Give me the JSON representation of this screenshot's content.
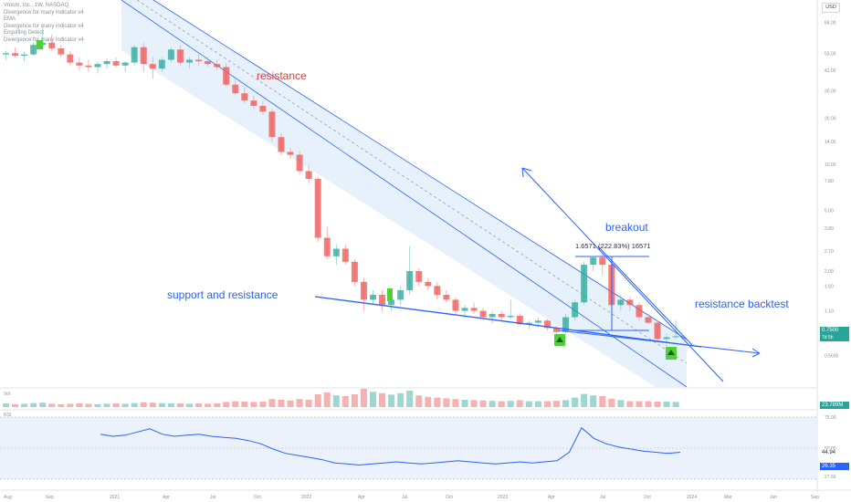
{
  "header": {
    "symbol_line": "Vroom, Inc., 1W, NASDAQ",
    "indicators": [
      "Divergence for many indicator v4",
      "EMA",
      "Divergence for many indicator v4",
      "Engulfing Detect",
      "Divergence for many indicator v4"
    ]
  },
  "currency_button": "USD",
  "annotations": {
    "resistance": "resistance",
    "support_and_resistance": "support and resistance",
    "breakout": "breakout",
    "resistance_backtest": "resistance backtest",
    "measure": "1.6571 (222.83%) 16571"
  },
  "price_boxes": {
    "last": "0.7500",
    "countdown": "7d 5h",
    "volume": "23.789M",
    "rsi_a": "44.94",
    "rsi_b": "26.35"
  },
  "panels": {
    "volume_label": "Vol",
    "rsi_label": "RSI"
  },
  "colors": {
    "up": "#26a69a",
    "down": "#ef5350",
    "up_light": "#8ecfc6",
    "down_light": "#f3a3a1",
    "line_blue": "#2962ff",
    "channel_fill": "#e3eefb",
    "signal_green": "#4cd137",
    "rsi_line": "#2962ff",
    "rsi_band": "#eaf1fb"
  },
  "chart_data": {
    "type": "candlestick",
    "timeframe": "1W",
    "price_axis_scale": "log",
    "price_axis_ticks": [
      "100.00",
      "84.00",
      "53.00",
      "41.00",
      "30.00",
      "20.00",
      "14.00",
      "10.00",
      "7.80",
      "5.00",
      "3.80",
      "2.70",
      "2.00",
      "1.60",
      "1.10",
      "0.8000",
      "0.5600",
      "0.3800"
    ],
    "time_axis_ticks": [
      "Aug",
      "Sep",
      "2021",
      "Apr",
      "Jul",
      "Oct",
      "2022",
      "Apr",
      "Jul",
      "Oct",
      "2023",
      "Apr",
      "Jul",
      "Oct",
      "2024",
      "Mar",
      "Jun",
      "Sep"
    ],
    "candles": [
      [
        52,
        55,
        48,
        53
      ],
      [
        53,
        58,
        50,
        51
      ],
      [
        51,
        54,
        47,
        52
      ],
      [
        52,
        62,
        51,
        60
      ],
      [
        60,
        80,
        58,
        62
      ],
      [
        62,
        70,
        55,
        57
      ],
      [
        57,
        60,
        50,
        52
      ],
      [
        52,
        55,
        44,
        46
      ],
      [
        46,
        50,
        41,
        44
      ],
      [
        44,
        48,
        40,
        43
      ],
      [
        43,
        47,
        39,
        45
      ],
      [
        45,
        49,
        42,
        47
      ],
      [
        47,
        50,
        43,
        44
      ],
      [
        44,
        47,
        40,
        46
      ],
      [
        46,
        60,
        44,
        58
      ],
      [
        58,
        62,
        40,
        45
      ],
      [
        45,
        50,
        36,
        42
      ],
      [
        42,
        50,
        40,
        48
      ],
      [
        48,
        58,
        46,
        56
      ],
      [
        56,
        60,
        44,
        46
      ],
      [
        46,
        50,
        42,
        48
      ],
      [
        48,
        52,
        44,
        47
      ],
      [
        47,
        50,
        43,
        45
      ],
      [
        45,
        48,
        41,
        43
      ],
      [
        43,
        46,
        32,
        33
      ],
      [
        33,
        36,
        28,
        29
      ],
      [
        29,
        32,
        25,
        26
      ],
      [
        26,
        28,
        23,
        24
      ],
      [
        24,
        26,
        21,
        22
      ],
      [
        22,
        23,
        14,
        15
      ],
      [
        15,
        16,
        11.5,
        12
      ],
      [
        12,
        12.8,
        10.8,
        11.5
      ],
      [
        11.5,
        12.2,
        8.6,
        9
      ],
      [
        9,
        9.8,
        7.5,
        8
      ],
      [
        8,
        8.2,
        3.1,
        3.3
      ],
      [
        3.3,
        3.9,
        2.4,
        2.5
      ],
      [
        2.5,
        3,
        2.2,
        2.8
      ],
      [
        2.8,
        3,
        2.2,
        2.3
      ],
      [
        2.3,
        2.4,
        1.6,
        1.7
      ],
      [
        1.7,
        1.8,
        1.1,
        1.3
      ],
      [
        1.3,
        1.5,
        1.2,
        1.4
      ],
      [
        1.4,
        1.5,
        1.1,
        1.2
      ],
      [
        1.2,
        1.4,
        1.1,
        1.3
      ],
      [
        1.3,
        1.6,
        1.2,
        1.5
      ],
      [
        1.5,
        2.9,
        1.4,
        2.0
      ],
      [
        2.0,
        2.1,
        1.6,
        1.7
      ],
      [
        1.7,
        1.8,
        1.5,
        1.6
      ],
      [
        1.6,
        1.7,
        1.3,
        1.4
      ],
      [
        1.4,
        1.5,
        1.25,
        1.3
      ],
      [
        1.3,
        1.35,
        1.05,
        1.1
      ],
      [
        1.1,
        1.2,
        1.0,
        1.15
      ],
      [
        1.15,
        1.25,
        1.05,
        1.1
      ],
      [
        1.1,
        1.15,
        0.95,
        1.0
      ],
      [
        1.0,
        1.1,
        0.9,
        1.05
      ],
      [
        1.05,
        1.1,
        0.95,
        1.0
      ],
      [
        1.0,
        1.3,
        0.97,
        1.02
      ],
      [
        1.02,
        1.06,
        0.88,
        0.9
      ],
      [
        0.9,
        0.95,
        0.83,
        0.92
      ],
      [
        0.92,
        1.0,
        0.86,
        0.95
      ],
      [
        0.95,
        0.97,
        0.82,
        0.85
      ],
      [
        0.85,
        0.88,
        0.78,
        0.8
      ],
      [
        0.8,
        1.05,
        0.78,
        1.0
      ],
      [
        1.0,
        1.3,
        0.95,
        1.25
      ],
      [
        1.25,
        2.3,
        1.2,
        2.2
      ],
      [
        2.2,
        2.5,
        2.0,
        2.45
      ],
      [
        2.45,
        2.6,
        1.9,
        2.2
      ],
      [
        2.2,
        2.3,
        1.1,
        1.2
      ],
      [
        1.2,
        1.4,
        1.1,
        1.3
      ],
      [
        1.3,
        1.35,
        1.1,
        1.2
      ],
      [
        1.2,
        1.25,
        0.95,
        1.0
      ],
      [
        1.0,
        1.05,
        0.9,
        0.92
      ],
      [
        0.92,
        0.95,
        0.7,
        0.72
      ],
      [
        0.72,
        0.78,
        0.65,
        0.74
      ],
      [
        0.74,
        0.95,
        0.72,
        0.75
      ]
    ],
    "volume": [
      1.0,
      0.8,
      0.9,
      1.1,
      1.2,
      0.9,
      0.8,
      0.9,
      1.0,
      0.9,
      0.8,
      0.9,
      1.0,
      0.9,
      1.1,
      1.3,
      1.2,
      1.1,
      1.0,
      1.0,
      0.9,
      1.0,
      0.9,
      1.0,
      1.4,
      1.6,
      1.5,
      1.4,
      1.5,
      2.2,
      2.0,
      1.8,
      2.2,
      2.0,
      3.5,
      4.0,
      3.2,
      3.0,
      3.5,
      5.0,
      4.2,
      3.8,
      3.4,
      3.8,
      4.5,
      3.2,
      2.8,
      2.6,
      2.4,
      2.2,
      2.0,
      1.9,
      1.8,
      1.7,
      1.6,
      1.7,
      1.9,
      1.6,
      1.6,
      1.6,
      1.7,
      1.9,
      2.6,
      3.6,
      3.2,
      3.0,
      2.3,
      1.9,
      1.6,
      1.6,
      1.6,
      1.5,
      1.5,
      1.4
    ],
    "rsi": [
      44,
      42,
      43,
      46,
      49,
      44,
      42,
      43,
      44,
      42,
      41,
      40,
      38,
      35,
      30,
      26,
      24,
      22,
      20,
      17,
      16,
      15,
      16,
      17,
      18,
      17,
      16,
      17,
      18,
      19,
      18,
      17,
      16,
      17,
      18,
      17,
      18,
      19,
      27,
      50,
      40,
      35,
      32,
      30,
      28,
      27,
      26,
      27
    ]
  }
}
